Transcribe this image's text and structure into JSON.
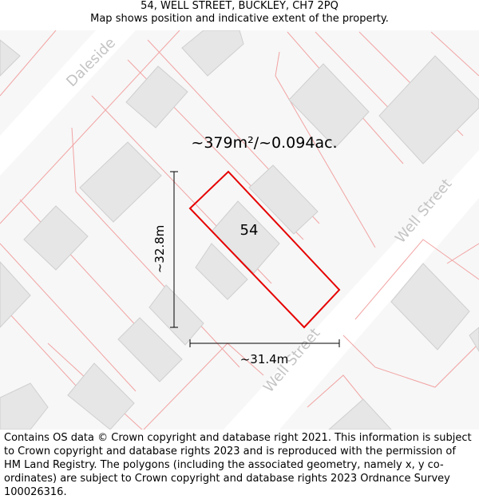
{
  "header": {
    "title": "54, WELL STREET, BUCKLEY, CH7 2PQ",
    "subtitle": "Map shows position and indicative extent of the property."
  },
  "map": {
    "area_label": "~379m²/~0.094ac.",
    "plot_number": "54",
    "height_dimension": "~32.8m",
    "width_dimension": "~31.4m",
    "street_labels": [
      "Daleside",
      "Well Street",
      "Well Street"
    ],
    "colors": {
      "background": "#f7f7f7",
      "road": "#ffffff",
      "building": "#e6e6e6",
      "parcel_line": "#f2a3a3",
      "property_outline": "#e60000",
      "dimension_line": "#000000"
    }
  },
  "footer": {
    "attribution": "Contains OS data © Crown copyright and database right 2021. This information is subject to Crown copyright and database rights 2023 and is reproduced with the permission of HM Land Registry. The polygons (including the associated geometry, namely x, y co-ordinates) are subject to Crown copyright and database rights 2023 Ordnance Survey 100026316."
  }
}
